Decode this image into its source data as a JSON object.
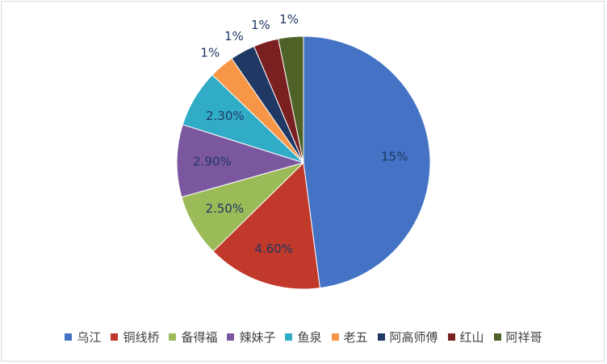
{
  "chart_data": {
    "type": "pie",
    "categories": [
      "乌江",
      "铜线桥",
      "备得福",
      "辣妹子",
      "鱼泉",
      "老五",
      "阿高师傅",
      "红山",
      "阿祥哥"
    ],
    "values": [
      15,
      4.6,
      2.5,
      2.9,
      2.3,
      1,
      1,
      1,
      1
    ],
    "labels": [
      "15%",
      "4.60%",
      "2.50%",
      "2.90%",
      "2.30%",
      "1%",
      "1%",
      "1%",
      "1%"
    ],
    "colors": [
      "#4472c4",
      "#c0392b",
      "#9bbb59",
      "#7b57a0",
      "#31acc6",
      "#f79646",
      "#1f3864",
      "#7b2020",
      "#4f6228"
    ],
    "legend_position": "bottom"
  }
}
